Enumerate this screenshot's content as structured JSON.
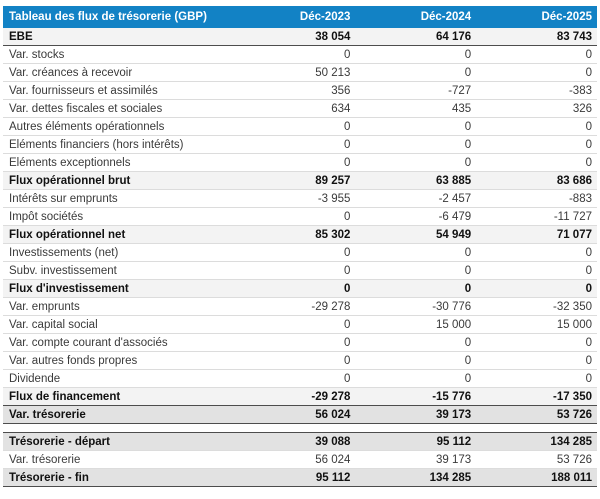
{
  "colors": {
    "header_bg": "#1282c5",
    "header_fg": "#ffffff",
    "row_separator": "#dcdcdc",
    "dark_rule": "#4d4d4d",
    "subtotal_bg": "#f3f3f3",
    "strong_bg": "#e2e2e2"
  },
  "table": {
    "title": "Tableau des flux de trésorerie (GBP)",
    "columns": [
      "Déc-2023",
      "Déc-2024",
      "Déc-2025"
    ],
    "rows": [
      {
        "label": "EBE",
        "values": [
          "38 054",
          "64 176",
          "83 743"
        ],
        "style": "subtotal",
        "dark_bottom": true
      },
      {
        "label": "Var. stocks",
        "values": [
          "0",
          "0",
          "0"
        ],
        "style": "normal"
      },
      {
        "label": "Var. créances à recevoir",
        "values": [
          "50 213",
          "0",
          "0"
        ],
        "style": "normal"
      },
      {
        "label": "Var. fournisseurs et assimilés",
        "values": [
          "356",
          "-727",
          "-383"
        ],
        "style": "normal"
      },
      {
        "label": "Var. dettes fiscales et sociales",
        "values": [
          "634",
          "435",
          "326"
        ],
        "style": "normal"
      },
      {
        "label": "Autres éléments opérationnels",
        "values": [
          "0",
          "0",
          "0"
        ],
        "style": "normal"
      },
      {
        "label": "Eléments financiers (hors intérêts)",
        "values": [
          "0",
          "0",
          "0"
        ],
        "style": "normal"
      },
      {
        "label": "Eléments exceptionnels",
        "values": [
          "0",
          "0",
          "0"
        ],
        "style": "normal"
      },
      {
        "label": "Flux opérationnel brut",
        "values": [
          "89 257",
          "63 885",
          "83 686"
        ],
        "style": "subtotal"
      },
      {
        "label": "Intérêts sur emprunts",
        "values": [
          "-3 955",
          "-2 457",
          "-883"
        ],
        "style": "normal"
      },
      {
        "label": "Impôt sociétés",
        "values": [
          "0",
          "-6 479",
          "-11 727"
        ],
        "style": "normal"
      },
      {
        "label": "Flux opérationnel net",
        "values": [
          "85 302",
          "54 949",
          "71 077"
        ],
        "style": "subtotal"
      },
      {
        "label": "Investissements (net)",
        "values": [
          "0",
          "0",
          "0"
        ],
        "style": "normal"
      },
      {
        "label": "Subv. investissement",
        "values": [
          "0",
          "0",
          "0"
        ],
        "style": "normal"
      },
      {
        "label": "Flux d'investissement",
        "values": [
          "0",
          "0",
          "0"
        ],
        "style": "subtotal"
      },
      {
        "label": "Var. emprunts",
        "values": [
          "-29 278",
          "-30 776",
          "-32 350"
        ],
        "style": "normal"
      },
      {
        "label": "Var. capital social",
        "values": [
          "0",
          "15 000",
          "15 000"
        ],
        "style": "normal"
      },
      {
        "label": "Var. compte courant d'associés",
        "values": [
          "0",
          "0",
          "0"
        ],
        "style": "normal"
      },
      {
        "label": "Var. autres fonds propres",
        "values": [
          "0",
          "0",
          "0"
        ],
        "style": "normal"
      },
      {
        "label": "Dividende",
        "values": [
          "0",
          "0",
          "0"
        ],
        "style": "normal"
      },
      {
        "label": "Flux de financement",
        "values": [
          "-29 278",
          "-15 776",
          "-17 350"
        ],
        "style": "subtotal",
        "dark_bottom": true
      },
      {
        "label": "Var. trésorerie",
        "values": [
          "56 024",
          "39 173",
          "53 726"
        ],
        "style": "strong",
        "dark_bottom": true
      },
      {
        "type": "spacer"
      },
      {
        "label": "Trésorerie - départ",
        "values": [
          "39 088",
          "95 112",
          "134 285"
        ],
        "style": "strong"
      },
      {
        "label": "Var. trésorerie",
        "values": [
          "56 024",
          "39 173",
          "53 726"
        ],
        "style": "normal"
      },
      {
        "label": "Trésorerie - fin",
        "values": [
          "95 112",
          "134 285",
          "188 011"
        ],
        "style": "strong",
        "dark_bottom": true
      }
    ]
  }
}
